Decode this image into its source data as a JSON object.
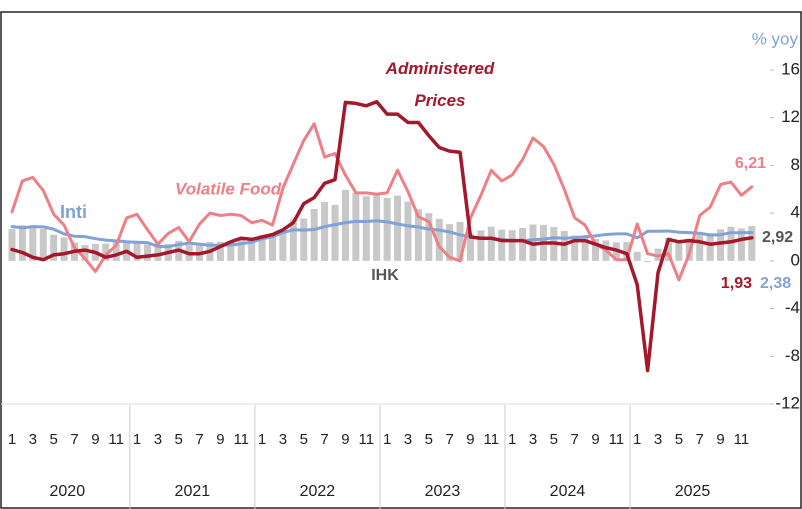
{
  "chart_data": {
    "type": "combo",
    "y_axis_label": "% yoy",
    "categories": [
      "1",
      null,
      "3",
      null,
      "5",
      null,
      "7",
      null,
      "9",
      null,
      "11",
      null,
      "1",
      null,
      "3",
      null,
      "5",
      null,
      "7",
      null,
      "9",
      null,
      "11",
      null,
      "1",
      null,
      "3",
      null,
      "5",
      null,
      "7",
      null,
      "9",
      null,
      "11",
      null,
      "1",
      null,
      "3",
      null,
      "5",
      null,
      "7",
      null,
      "9",
      null,
      "11",
      null,
      "1",
      null,
      "3",
      null,
      "5",
      null,
      "7",
      null,
      "9",
      null,
      "11",
      null,
      "1",
      null,
      "3",
      null,
      "5",
      null,
      "7",
      null,
      "9",
      null,
      "11",
      null
    ],
    "years": [
      "2020",
      "2021",
      "2022",
      "2023",
      "2024",
      "2025"
    ],
    "ylim": [
      -12,
      16
    ],
    "yticks": [
      16,
      12,
      8,
      4,
      0,
      -4,
      -8,
      -12
    ],
    "series": [
      {
        "name": "IHK",
        "type": "bar",
        "color": "#c8c8c8",
        "label_color": "#555555",
        "values": [
          2.68,
          2.98,
          2.96,
          2.67,
          2.19,
          1.96,
          1.54,
          1.32,
          1.42,
          1.44,
          1.59,
          1.68,
          1.55,
          1.38,
          1.37,
          1.42,
          1.68,
          1.33,
          1.52,
          1.59,
          1.6,
          1.66,
          1.75,
          1.87,
          2.18,
          2.06,
          2.64,
          3.47,
          3.55,
          4.35,
          4.94,
          4.69,
          5.95,
          5.71,
          5.42,
          5.51,
          5.28,
          5.47,
          4.97,
          4.33,
          4.0,
          3.52,
          3.08,
          3.27,
          2.28,
          2.56,
          2.86,
          2.61,
          2.57,
          2.75,
          3.05,
          3.0,
          2.84,
          2.51,
          2.13,
          2.12,
          1.84,
          1.71,
          1.55,
          1.57,
          0.76,
          -0.09,
          1.03,
          1.95,
          1.6,
          1.87,
          2.37,
          2.31,
          2.65,
          2.86,
          2.72,
          2.92
        ],
        "value_labels": [
          null,
          null,
          null,
          null,
          null,
          null,
          null,
          null,
          null,
          null,
          null,
          null,
          null,
          null,
          null,
          null,
          null,
          null,
          null,
          null,
          null,
          null,
          null,
          null,
          null,
          null,
          null,
          null,
          null,
          null,
          null,
          null,
          null,
          null,
          null,
          null,
          null,
          null,
          null,
          null,
          null,
          null,
          null,
          null,
          null,
          null,
          null,
          null,
          null,
          null,
          null,
          null,
          null,
          null,
          null,
          null,
          null,
          null,
          null,
          null,
          null,
          null,
          null,
          null,
          null,
          null,
          null,
          null,
          null,
          null,
          null,
          "2,92"
        ]
      },
      {
        "name": "Inti",
        "type": "line",
        "color": "#7fa3d6",
        "label_color": "#7fa3d6",
        "values": [
          2.88,
          2.76,
          2.87,
          2.85,
          2.65,
          2.26,
          2.07,
          2.03,
          1.86,
          1.74,
          1.67,
          1.6,
          1.56,
          1.53,
          1.21,
          1.18,
          1.37,
          1.49,
          1.4,
          1.31,
          1.3,
          1.33,
          1.44,
          1.56,
          1.84,
          2.03,
          2.37,
          2.6,
          2.58,
          2.63,
          2.86,
          3.04,
          3.21,
          3.31,
          3.3,
          3.36,
          3.27,
          3.09,
          2.94,
          2.83,
          2.66,
          2.58,
          2.43,
          2.18,
          2.0,
          1.91,
          1.87,
          1.8,
          1.68,
          1.68,
          1.77,
          1.82,
          1.93,
          1.9,
          1.95,
          2.02,
          2.09,
          2.21,
          2.26,
          2.26,
          1.93,
          2.48,
          2.48,
          2.5,
          2.4,
          2.37,
          2.32,
          2.17,
          2.19,
          2.36,
          2.36,
          2.38
        ],
        "value_labels": [
          null,
          null,
          null,
          null,
          null,
          null,
          null,
          null,
          null,
          null,
          null,
          null,
          null,
          null,
          null,
          null,
          null,
          null,
          null,
          null,
          null,
          null,
          null,
          null,
          null,
          null,
          null,
          null,
          null,
          null,
          null,
          null,
          null,
          null,
          null,
          null,
          null,
          null,
          null,
          null,
          null,
          null,
          null,
          null,
          null,
          null,
          null,
          null,
          null,
          null,
          null,
          null,
          null,
          null,
          null,
          null,
          null,
          null,
          null,
          null,
          null,
          null,
          null,
          null,
          null,
          null,
          null,
          null,
          null,
          null,
          null,
          "2,38"
        ]
      },
      {
        "name": "Volatile Food",
        "type": "line",
        "color": "#ee7f87",
        "label_color": "#ee7f87",
        "values": [
          4.1,
          6.7,
          7.0,
          5.9,
          3.9,
          3.0,
          1.1,
          0.2,
          -0.9,
          0.5,
          1.3,
          3.6,
          3.9,
          2.6,
          1.4,
          2.3,
          2.8,
          1.6,
          3.1,
          4.0,
          3.8,
          3.9,
          3.8,
          3.2,
          3.4,
          3.0,
          6.1,
          8.1,
          10.1,
          11.5,
          8.7,
          9.0,
          7.2,
          5.7,
          5.7,
          5.6,
          5.7,
          7.6,
          5.8,
          3.7,
          3.3,
          1.2,
          0.3,
          0.0,
          3.6,
          5.5,
          7.6,
          6.7,
          7.2,
          8.5,
          10.3,
          9.6,
          8.1,
          6.0,
          3.6,
          3.0,
          1.4,
          0.9,
          0.1,
          0.1,
          3.1,
          0.6,
          0.4,
          0.6,
          -1.6,
          0.6,
          3.8,
          4.5,
          6.4,
          6.6,
          5.5,
          6.21
        ],
        "value_labels": [
          null,
          null,
          null,
          null,
          null,
          null,
          null,
          null,
          null,
          null,
          null,
          null,
          null,
          null,
          null,
          null,
          null,
          null,
          null,
          null,
          null,
          null,
          null,
          null,
          null,
          null,
          null,
          null,
          null,
          null,
          null,
          null,
          null,
          null,
          null,
          null,
          null,
          null,
          null,
          null,
          null,
          null,
          null,
          null,
          null,
          null,
          null,
          null,
          null,
          null,
          null,
          null,
          null,
          null,
          null,
          null,
          null,
          null,
          null,
          null,
          null,
          null,
          null,
          null,
          null,
          null,
          null,
          null,
          null,
          null,
          null,
          "6,21"
        ]
      },
      {
        "name": "Administered Prices",
        "type": "line",
        "color": "#a3182b",
        "label_color": "#a3182b",
        "values": [
          0.95,
          0.7,
          0.3,
          0.1,
          0.5,
          0.6,
          0.8,
          0.9,
          0.7,
          0.3,
          0.5,
          0.8,
          0.3,
          0.4,
          0.5,
          0.7,
          0.9,
          0.6,
          0.6,
          0.8,
          1.2,
          1.6,
          1.9,
          1.8,
          2.0,
          2.2,
          2.6,
          3.2,
          4.8,
          5.3,
          6.5,
          6.8,
          13.28,
          13.2,
          13.0,
          13.34,
          12.3,
          12.3,
          11.6,
          11.6,
          10.5,
          9.5,
          9.2,
          9.1,
          2.0,
          1.9,
          1.9,
          1.7,
          1.7,
          1.7,
          1.4,
          1.5,
          1.5,
          1.4,
          1.7,
          1.7,
          1.4,
          1.1,
          0.9,
          0.6,
          -2.0,
          -9.2,
          -1.0,
          1.8,
          1.6,
          1.7,
          1.6,
          1.4,
          1.5,
          1.6,
          1.8,
          1.93
        ],
        "value_labels": [
          null,
          null,
          null,
          null,
          null,
          null,
          null,
          null,
          null,
          null,
          null,
          null,
          null,
          null,
          null,
          null,
          null,
          null,
          null,
          null,
          null,
          null,
          null,
          null,
          null,
          null,
          null,
          null,
          null,
          null,
          null,
          null,
          null,
          null,
          null,
          null,
          null,
          null,
          null,
          null,
          null,
          null,
          null,
          null,
          null,
          null,
          null,
          null,
          null,
          null,
          null,
          null,
          null,
          null,
          null,
          null,
          null,
          null,
          null,
          null,
          null,
          null,
          null,
          null,
          null,
          null,
          null,
          null,
          null,
          null,
          null,
          "1,93"
        ]
      }
    ]
  }
}
